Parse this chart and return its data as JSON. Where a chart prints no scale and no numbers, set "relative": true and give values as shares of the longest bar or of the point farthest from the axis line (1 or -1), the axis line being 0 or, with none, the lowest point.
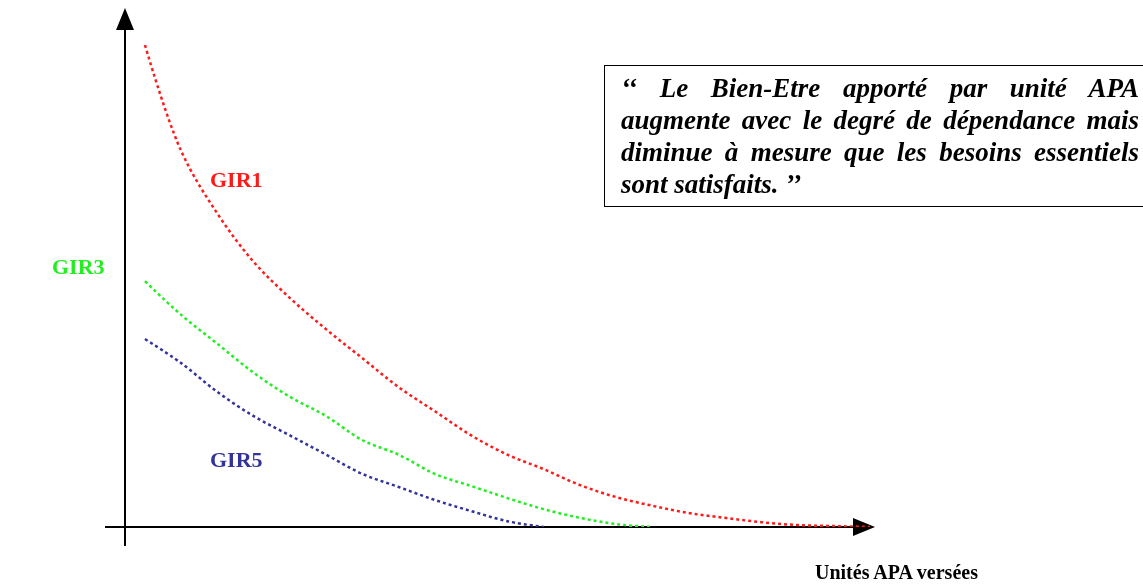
{
  "chart_data": {
    "type": "line",
    "relative": true,
    "xlabel": "Unités APA versées",
    "categories": [
      null,
      null,
      null,
      null,
      null,
      null,
      null,
      null,
      null,
      null,
      null,
      null,
      null,
      null,
      null,
      null,
      null,
      null,
      null,
      null,
      null
    ],
    "series": [
      {
        "name": "GIR1",
        "color": "#ff1a1a",
        "values": [
          1.0,
          0.78,
          0.65,
          0.55,
          0.475,
          0.41,
          0.35,
          0.29,
          0.24,
          0.19,
          0.15,
          0.12,
          0.087,
          0.062,
          0.044,
          0.029,
          0.019,
          0.01,
          0.004,
          0.002,
          0
        ]
      },
      {
        "name": "GIR3",
        "color": "#22ee22",
        "values": [
          0.51,
          0.44,
          0.38,
          0.32,
          0.27,
          0.23,
          0.18,
          0.15,
          0.11,
          0.085,
          0.06,
          0.037,
          0.019,
          0.006,
          0,
          null,
          null,
          null,
          null,
          null,
          null
        ]
      },
      {
        "name": "GIR5",
        "color": "#333399",
        "values": [
          0.39,
          0.34,
          0.28,
          0.23,
          0.19,
          0.15,
          0.11,
          0.083,
          0.056,
          0.033,
          0.012,
          0,
          null,
          null,
          null,
          null,
          null,
          null,
          null,
          null,
          null
        ]
      }
    ],
    "annotations": [
      "‘‘ Le Bien-Etre apporté par unité APA augmente avec le degré de dépendance mais diminue à mesure que les besoins essentiels sont satisfaits. ’’"
    ],
    "line_style": "dotted",
    "marker": "none",
    "legend": false
  }
}
